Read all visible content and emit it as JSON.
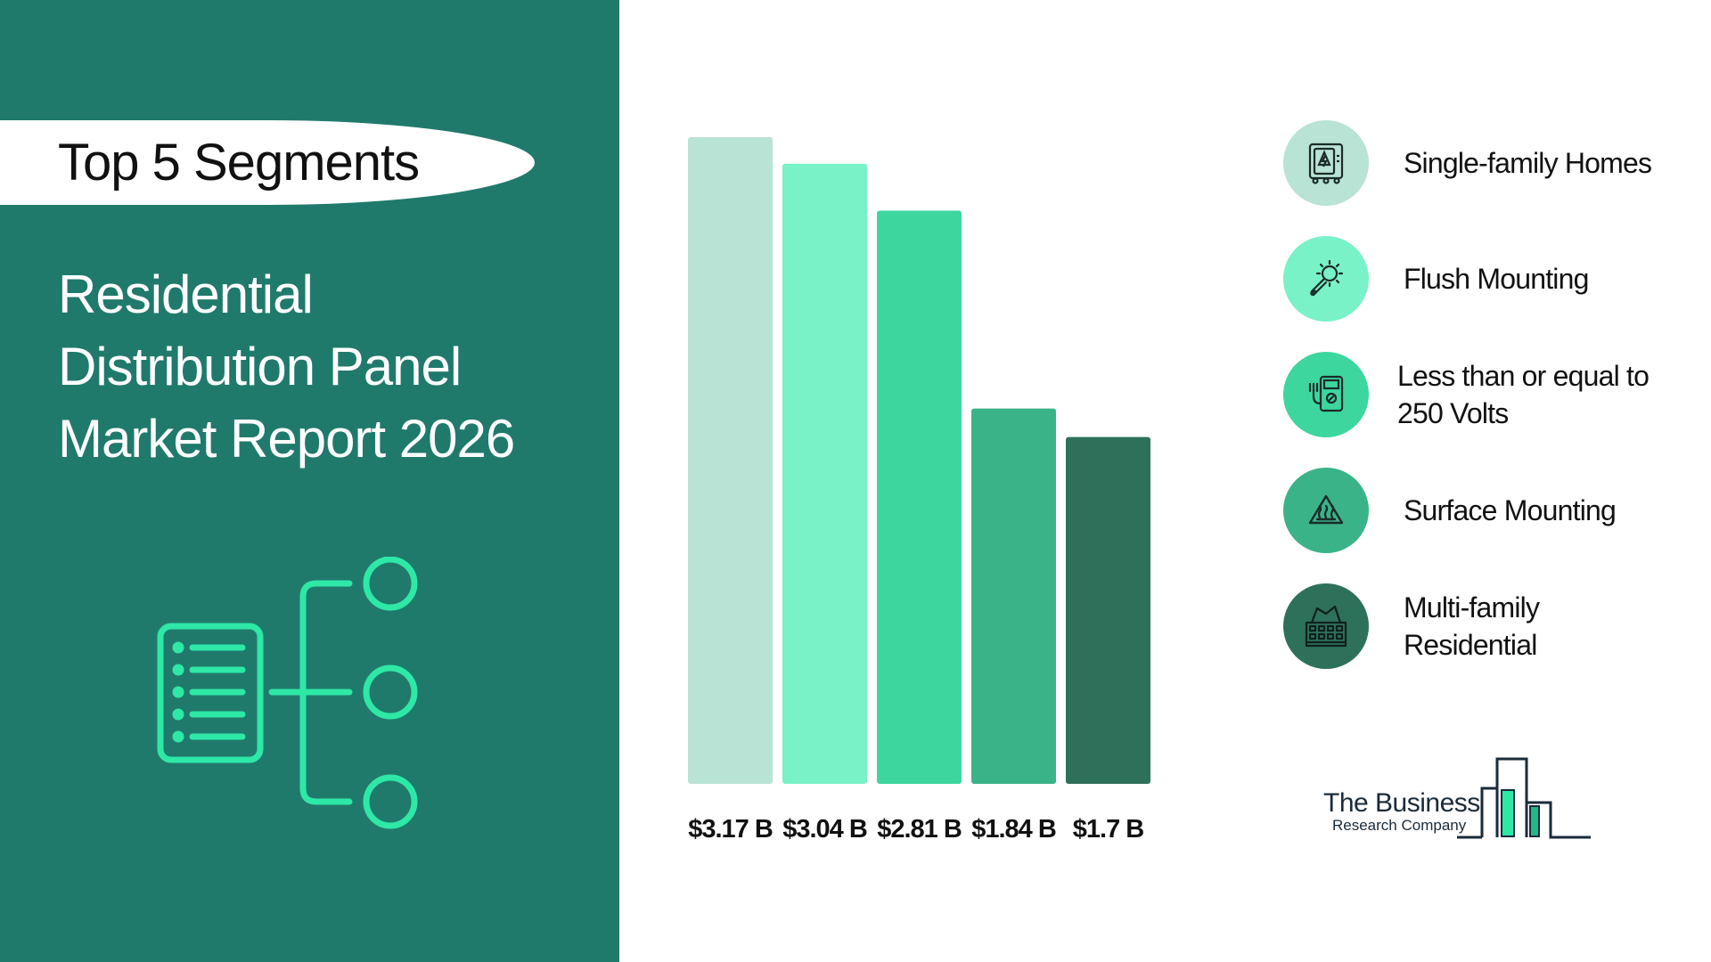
{
  "header": {
    "badge_label": "Top 5 Segments",
    "title_lines": [
      "Residential",
      "Distribution Panel",
      "Market Report 2026"
    ]
  },
  "chart_data": {
    "type": "bar",
    "categories": [
      "Single-family Homes",
      "Flush Mounting",
      "Less than or equal to 250 Volts",
      "Surface Mounting",
      "Multi-family Residential"
    ],
    "values": [
      3.17,
      3.04,
      2.81,
      1.84,
      1.7
    ],
    "value_labels": [
      "$3.17 B",
      "$3.04 B",
      "$2.81 B",
      "$1.84 B",
      "$1.7 B"
    ],
    "unit": "$ B",
    "colors": [
      "#b9e3d4",
      "#78f2c6",
      "#3dd69e",
      "#3bb388",
      "#2e715b"
    ],
    "ylim": [
      0,
      3.17
    ],
    "grid": false,
    "legend_position": "right"
  },
  "legend": [
    {
      "label_lines": [
        "Single-family Homes"
      ],
      "icon": "electrical-panel-icon",
      "color": "#b9e3d4"
    },
    {
      "label_lines": [
        "Flush Mounting"
      ],
      "icon": "wrench-gear-icon",
      "color": "#78f2c6"
    },
    {
      "label_lines": [
        "Less than or equal to",
        "250 Volts"
      ],
      "icon": "multimeter-icon",
      "color": "#3dd69e"
    },
    {
      "label_lines": [
        "Surface Mounting"
      ],
      "icon": "heat-warning-icon",
      "color": "#3bb388"
    },
    {
      "label_lines": [
        "Multi-family",
        "Residential"
      ],
      "icon": "apartment-building-icon",
      "color": "#2e715b"
    }
  ],
  "logo": {
    "line1": "The Business",
    "line2": "Research Company"
  },
  "colors": {
    "panel_bg": "#207a6c",
    "accent": "#2ee8a6"
  }
}
